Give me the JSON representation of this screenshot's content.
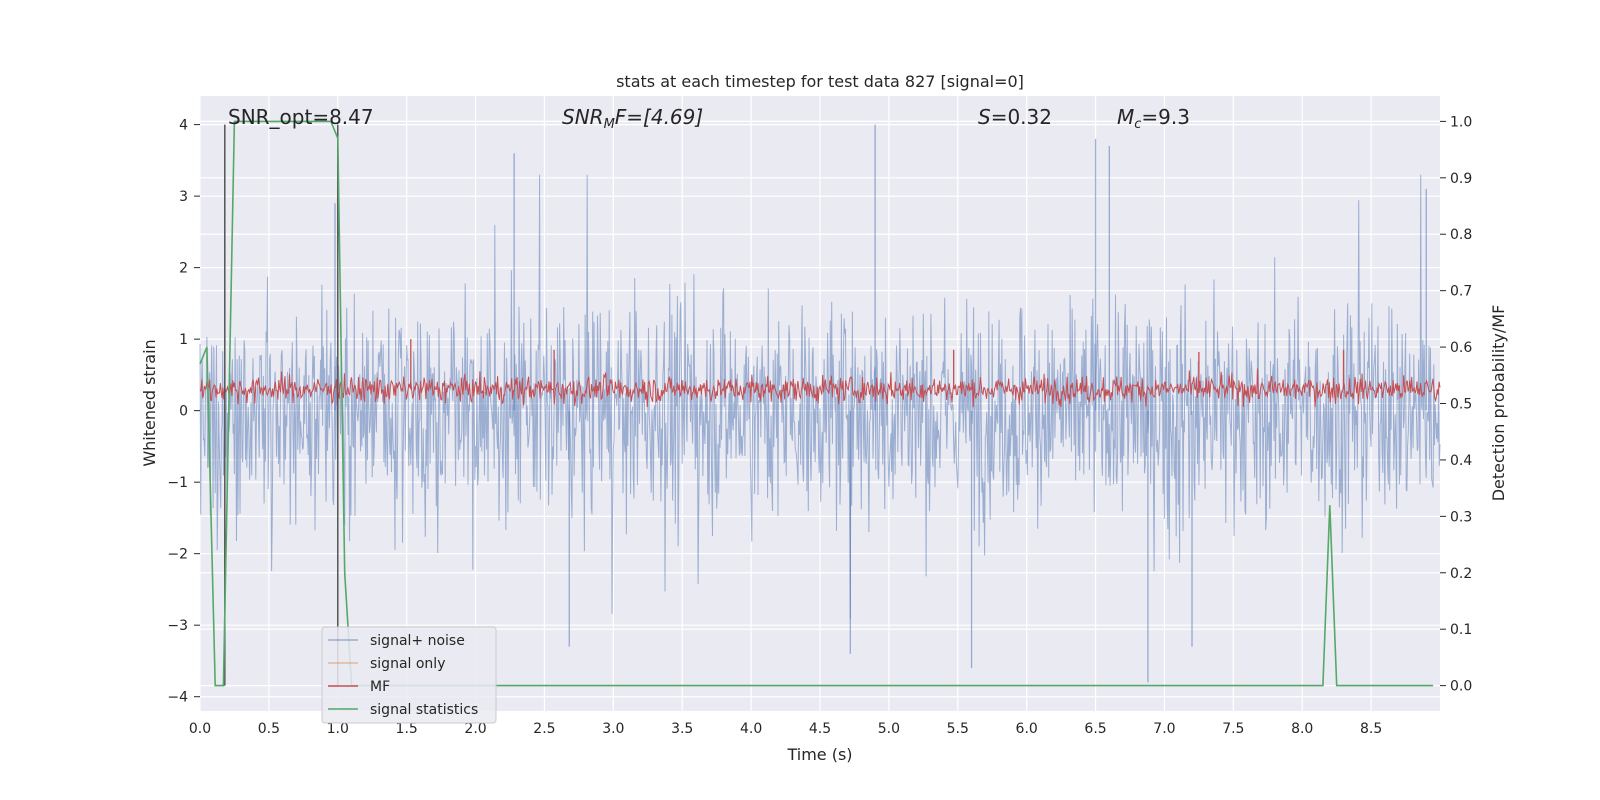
{
  "chart_data": {
    "type": "line",
    "title": "stats at each timestep for test data 827 [signal=0]",
    "xlabel": "Time (s)",
    "ylabel": "Whitened strain",
    "ylabel_right": "Detection probability/MF",
    "xlim": [
      0.0,
      9.0
    ],
    "ylim": [
      -4.2,
      4.4
    ],
    "ylim_right": [
      -0.045,
      1.045
    ],
    "xticks": [
      "0.0",
      "0.5",
      "1.0",
      "1.5",
      "2.0",
      "2.5",
      "3.0",
      "3.5",
      "4.0",
      "4.5",
      "5.0",
      "5.5",
      "6.0",
      "6.5",
      "7.0",
      "7.5",
      "8.0",
      "8.5"
    ],
    "yticks": [
      "4",
      "3",
      "2",
      "1",
      "0",
      "−1",
      "−2",
      "−3",
      "−4"
    ],
    "yticks_right": [
      "1.0",
      "0.9",
      "0.8",
      "0.7",
      "0.6",
      "0.5",
      "0.4",
      "0.3",
      "0.2",
      "0.1",
      "0.0"
    ],
    "grid": true,
    "legend_position": "lower-left",
    "annotations": {
      "snr_opt": "SNR_opt=8.47",
      "snr_mf_sym": "SNR",
      "snr_mf_sub": "M",
      "snr_mf_rest": "F=[4.69]",
      "s_sym": "S",
      "s_rest": "=0.32",
      "mc_sym": "M",
      "mc_sub": "c",
      "mc_rest": "=9.3"
    },
    "vertical_markers": [
      0.18,
      1.0
    ],
    "series": [
      {
        "name": "signal+ noise",
        "color": "#4c72b0",
        "description": "noise band roughly -2.5 to 2.6 with spikes up to 4.0 and down to -3.9",
        "spikes": [
          [
            0.18,
            3.6
          ],
          [
            0.98,
            2.9
          ],
          [
            2.28,
            3.6
          ],
          [
            4.9,
            4.0
          ],
          [
            6.5,
            3.8
          ],
          [
            6.6,
            3.7
          ],
          [
            8.9,
            3.1
          ],
          [
            4.72,
            -3.4
          ],
          [
            5.6,
            -3.6
          ],
          [
            6.88,
            -3.8
          ],
          [
            7.2,
            -3.3
          ],
          [
            2.68,
            -3.3
          ]
        ]
      },
      {
        "name": "signal only",
        "color": "#dd8452",
        "values": []
      },
      {
        "name": "MF",
        "color": "#c44e52",
        "description": "red band roughly 0.1 to 0.6 with peaks near 1.0 at 1.53",
        "spikes": [
          [
            1.53,
            1.0
          ],
          [
            2.57,
            0.85
          ],
          [
            5.47,
            0.85
          ],
          [
            7.25,
            0.82
          ],
          [
            8.3,
            0.85
          ]
        ]
      },
      {
        "name": "signal statistics",
        "color": "#55a868",
        "axis": "right",
        "x": [
          0.0,
          0.05,
          0.11,
          0.17,
          0.25,
          0.95,
          1.0,
          1.05,
          1.1,
          1.2,
          8.1,
          8.15,
          8.2,
          8.25,
          8.3,
          8.95
        ],
        "y": [
          0.57,
          0.6,
          0.0,
          0.0,
          1.0,
          1.0,
          0.97,
          0.2,
          0.0,
          0.0,
          0.0,
          0.0,
          0.32,
          0.0,
          0.0,
          0.0
        ]
      }
    ]
  }
}
